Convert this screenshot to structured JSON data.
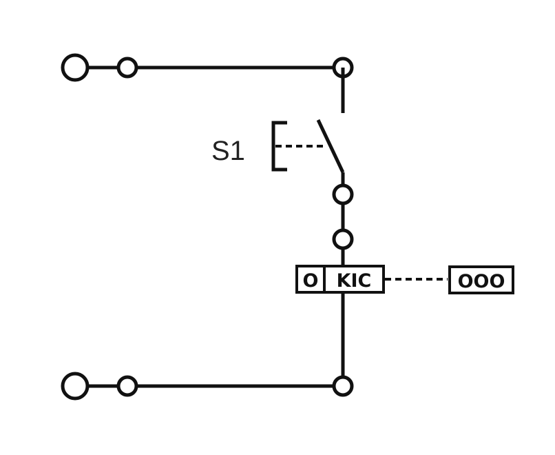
{
  "diagram": {
    "switch_label": "S1",
    "relay_left_label": "O",
    "relay_main_label": "KIC",
    "relay_remote_label": "OOO",
    "stroke_color": "#111111",
    "background_color": "#ffffff"
  }
}
